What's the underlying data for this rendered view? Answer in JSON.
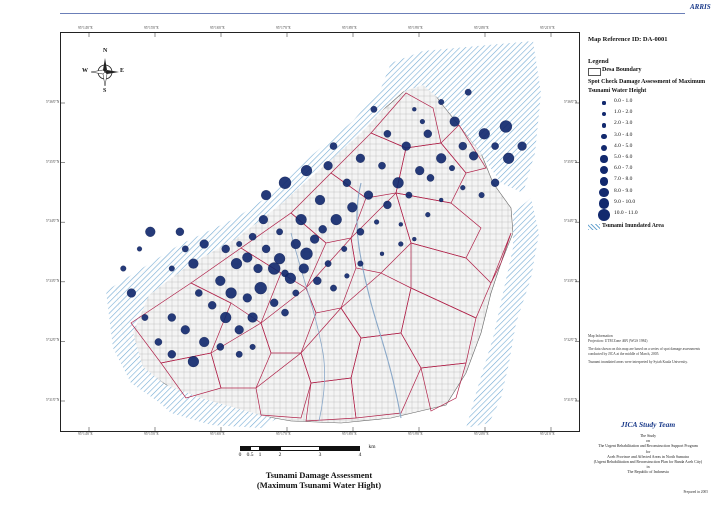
{
  "brand": "ARRIS",
  "map_reference": "Map Reference ID: DA-0001",
  "legend": {
    "title": "Legend",
    "desa_boundary": "Desa Boundary",
    "spot_check_title": "Spot Check Damage Assessment of Maximum Tsunami Water Height",
    "classes": [
      "0.0 - 1.0",
      "1.0 - 2.0",
      "2.0 - 3.0",
      "3.0 - 4.0",
      "4.0 - 5.0",
      "5.0 - 6.0",
      "6.0 - 7.0",
      "7.0 - 8.0",
      "8.0 - 9.0",
      "9.0 - 10.0",
      "10.0 - 11.0"
    ],
    "inundated_area": "Tsunami Inundated Area",
    "dot_color": "#12296e",
    "inundation_color": "#6fa8d2",
    "boundary_color": "#b0234a"
  },
  "notes": [
    "Map Information\nProjection: UTM Zone 46N (WGS 1984)",
    "The data shown on this map are based on a series of spot damage assessments conducted by JICA at the middle of March, 2005.",
    "Tsunami inundated areas were interpreted by Syiah Kuala University."
  ],
  "credit": {
    "team": "JICA Study Team",
    "study_lines": [
      "The Study",
      "on",
      "The Urgent Rehabilitation and Reconstruction Support Program",
      "for",
      "Aceh Province and Affected Areas in North Sumatra",
      "(Urgent Rehabilitation and Reconstruction Plan for Banda Aceh City)",
      "in",
      "The Republic of Indonesia"
    ],
    "prepared": "Prepared in 2005"
  },
  "compass": {
    "n": "N",
    "s": "S",
    "e": "E",
    "w": "W",
    "icon": "compass-rose-icon"
  },
  "scale": {
    "labels": [
      "0",
      "0.5",
      "1",
      "2",
      "3",
      "4"
    ],
    "unit": "km"
  },
  "title": {
    "line1": "Tsunami Damage Assessment",
    "line2": "(Maximum Tsunami Water Hight)"
  },
  "coords_top": [
    "95°14'0\"E",
    "95°15'0\"E",
    "95°16'0\"E",
    "95°17'0\"E",
    "95°18'0\"E",
    "95°19'0\"E",
    "95°20'0\"E",
    "95°21'0\"E"
  ],
  "coords_bottom": [
    "95°14'0\"E",
    "95°15'0\"E",
    "95°16'0\"E",
    "95°17'0\"E",
    "95°18'0\"E",
    "95°19'0\"E",
    "95°20'0\"E",
    "95°21'0\"E"
  ],
  "coords_left": [
    "5°36'0\"N",
    "5°35'0\"N",
    "5°34'0\"N",
    "5°33'0\"N",
    "5°32'0\"N",
    "5°31'0\"N"
  ],
  "coords_right": [
    "5°36'0\"N",
    "5°35'0\"N",
    "5°34'0\"N",
    "5°33'0\"N",
    "5°32'0\"N",
    "5°31'0\"N"
  ],
  "spot_points": [
    {
      "lon": 95.254,
      "lat": 5.552,
      "cls": 9
    },
    {
      "lon": 95.258,
      "lat": 5.5545,
      "cls": 8
    },
    {
      "lon": 95.262,
      "lat": 5.55,
      "cls": 7
    },
    {
      "lon": 95.265,
      "lat": 5.558,
      "cls": 6
    },
    {
      "lon": 95.27,
      "lat": 5.554,
      "cls": 9
    },
    {
      "lon": 95.272,
      "lat": 5.548,
      "cls": 5
    },
    {
      "lon": 95.276,
      "lat": 5.56,
      "cls": 8
    },
    {
      "lon": 95.28,
      "lat": 5.556,
      "cls": 10
    },
    {
      "lon": 95.283,
      "lat": 5.562,
      "cls": 7
    },
    {
      "lon": 95.286,
      "lat": 5.566,
      "cls": 6
    },
    {
      "lon": 95.288,
      "lat": 5.552,
      "cls": 4
    },
    {
      "lon": 95.291,
      "lat": 5.57,
      "cls": 9
    },
    {
      "lon": 95.294,
      "lat": 5.558,
      "cls": 3
    },
    {
      "lon": 95.297,
      "lat": 5.575,
      "cls": 8
    },
    {
      "lon": 95.3,
      "lat": 5.565,
      "cls": 5
    },
    {
      "lon": 95.303,
      "lat": 5.58,
      "cls": 7
    },
    {
      "lon": 95.306,
      "lat": 5.569,
      "cls": 2
    },
    {
      "lon": 95.31,
      "lat": 5.576,
      "cls": 6
    },
    {
      "lon": 95.314,
      "lat": 5.585,
      "cls": 9
    },
    {
      "lon": 95.318,
      "lat": 5.58,
      "cls": 4
    },
    {
      "lon": 95.322,
      "lat": 5.59,
      "cls": 7
    },
    {
      "lon": 95.326,
      "lat": 5.587,
      "cls": 5
    },
    {
      "lon": 95.33,
      "lat": 5.595,
      "cls": 8
    },
    {
      "lon": 95.334,
      "lat": 5.591,
      "cls": 3
    },
    {
      "lon": 95.338,
      "lat": 5.6,
      "cls": 6
    },
    {
      "lon": 95.342,
      "lat": 5.596,
      "cls": 7
    },
    {
      "lon": 95.346,
      "lat": 5.605,
      "cls": 9
    },
    {
      "lon": 95.35,
      "lat": 5.6,
      "cls": 5
    },
    {
      "lon": 95.354,
      "lat": 5.608,
      "cls": 10
    },
    {
      "lon": 95.323,
      "lat": 5.61,
      "cls": 2
    },
    {
      "lon": 95.33,
      "lat": 5.618,
      "cls": 3
    },
    {
      "lon": 95.34,
      "lat": 5.622,
      "cls": 4
    },
    {
      "lon": 95.32,
      "lat": 5.615,
      "cls": 1
    },
    {
      "lon": 95.31,
      "lat": 5.605,
      "cls": 5
    },
    {
      "lon": 95.3,
      "lat": 5.595,
      "cls": 7
    },
    {
      "lon": 95.295,
      "lat": 5.585,
      "cls": 6
    },
    {
      "lon": 95.285,
      "lat": 5.578,
      "cls": 8
    },
    {
      "lon": 95.278,
      "lat": 5.57,
      "cls": 9
    },
    {
      "lon": 95.27,
      "lat": 5.565,
      "cls": 4
    },
    {
      "lon": 95.264,
      "lat": 5.57,
      "cls": 7
    },
    {
      "lon": 95.26,
      "lat": 5.563,
      "cls": 5
    },
    {
      "lon": 95.255,
      "lat": 5.56,
      "cls": 3
    },
    {
      "lon": 95.25,
      "lat": 5.558,
      "cls": 6
    },
    {
      "lon": 95.248,
      "lat": 5.545,
      "cls": 8
    },
    {
      "lon": 95.252,
      "lat": 5.54,
      "cls": 9
    },
    {
      "lon": 95.258,
      "lat": 5.538,
      "cls": 7
    },
    {
      "lon": 95.263,
      "lat": 5.542,
      "cls": 10
    },
    {
      "lon": 95.268,
      "lat": 5.536,
      "cls": 6
    },
    {
      "lon": 95.272,
      "lat": 5.532,
      "cls": 5
    },
    {
      "lon": 95.276,
      "lat": 5.54,
      "cls": 4
    },
    {
      "lon": 95.26,
      "lat": 5.53,
      "cls": 8
    },
    {
      "lon": 95.255,
      "lat": 5.525,
      "cls": 7
    },
    {
      "lon": 95.25,
      "lat": 5.53,
      "cls": 9
    },
    {
      "lon": 95.245,
      "lat": 5.535,
      "cls": 6
    },
    {
      "lon": 95.24,
      "lat": 5.54,
      "cls": 5
    },
    {
      "lon": 95.238,
      "lat": 5.552,
      "cls": 8
    },
    {
      "lon": 95.242,
      "lat": 5.56,
      "cls": 7
    },
    {
      "lon": 95.235,
      "lat": 5.558,
      "cls": 4
    },
    {
      "lon": 95.23,
      "lat": 5.55,
      "cls": 3
    },
    {
      "lon": 95.233,
      "lat": 5.565,
      "cls": 6
    },
    {
      "lon": 95.265,
      "lat": 5.58,
      "cls": 8
    },
    {
      "lon": 95.272,
      "lat": 5.585,
      "cls": 10
    },
    {
      "lon": 95.28,
      "lat": 5.59,
      "cls": 9
    },
    {
      "lon": 95.288,
      "lat": 5.592,
      "cls": 7
    },
    {
      "lon": 95.29,
      "lat": 5.6,
      "cls": 5
    },
    {
      "lon": 95.305,
      "lat": 5.615,
      "cls": 4
    },
    {
      "lon": 95.35,
      "lat": 5.585,
      "cls": 6
    },
    {
      "lon": 95.345,
      "lat": 5.58,
      "cls": 3
    },
    {
      "lon": 95.338,
      "lat": 5.583,
      "cls": 2
    },
    {
      "lon": 95.33,
      "lat": 5.578,
      "cls": 1
    },
    {
      "lon": 95.325,
      "lat": 5.572,
      "cls": 2
    },
    {
      "lon": 95.315,
      "lat": 5.568,
      "cls": 1
    },
    {
      "lon": 95.23,
      "lat": 5.53,
      "cls": 6
    },
    {
      "lon": 95.235,
      "lat": 5.525,
      "cls": 7
    },
    {
      "lon": 95.242,
      "lat": 5.52,
      "cls": 8
    },
    {
      "lon": 95.248,
      "lat": 5.518,
      "cls": 5
    },
    {
      "lon": 95.255,
      "lat": 5.515,
      "cls": 4
    },
    {
      "lon": 95.26,
      "lat": 5.518,
      "cls": 3
    },
    {
      "lon": 95.238,
      "lat": 5.512,
      "cls": 9
    },
    {
      "lon": 95.23,
      "lat": 5.515,
      "cls": 6
    },
    {
      "lon": 95.225,
      "lat": 5.52,
      "cls": 5
    },
    {
      "lon": 95.22,
      "lat": 5.53,
      "cls": 4
    },
    {
      "lon": 95.215,
      "lat": 5.54,
      "cls": 7
    },
    {
      "lon": 95.212,
      "lat": 5.55,
      "cls": 3
    },
    {
      "lon": 95.218,
      "lat": 5.558,
      "cls": 2
    },
    {
      "lon": 95.222,
      "lat": 5.565,
      "cls": 8
    },
    {
      "lon": 95.268,
      "lat": 5.55,
      "cls": 10
    },
    {
      "lon": 95.274,
      "lat": 5.546,
      "cls": 9
    },
    {
      "lon": 95.279,
      "lat": 5.55,
      "cls": 8
    },
    {
      "lon": 95.284,
      "lat": 5.545,
      "cls": 6
    },
    {
      "lon": 95.29,
      "lat": 5.542,
      "cls": 4
    },
    {
      "lon": 95.295,
      "lat": 5.547,
      "cls": 2
    },
    {
      "lon": 95.3,
      "lat": 5.552,
      "cls": 3
    },
    {
      "lon": 95.308,
      "lat": 5.556,
      "cls": 1
    },
    {
      "lon": 95.315,
      "lat": 5.56,
      "cls": 2
    },
    {
      "lon": 95.32,
      "lat": 5.562,
      "cls": 1
    },
    {
      "lon": 95.335,
      "lat": 5.61,
      "cls": 8
    },
    {
      "lon": 95.325,
      "lat": 5.605,
      "cls": 6
    },
    {
      "lon": 95.317,
      "lat": 5.6,
      "cls": 7
    },
    {
      "lon": 95.308,
      "lat": 5.592,
      "cls": 5
    },
    {
      "lon": 95.355,
      "lat": 5.595,
      "cls": 9
    },
    {
      "lon": 95.36,
      "lat": 5.6,
      "cls": 7
    }
  ]
}
